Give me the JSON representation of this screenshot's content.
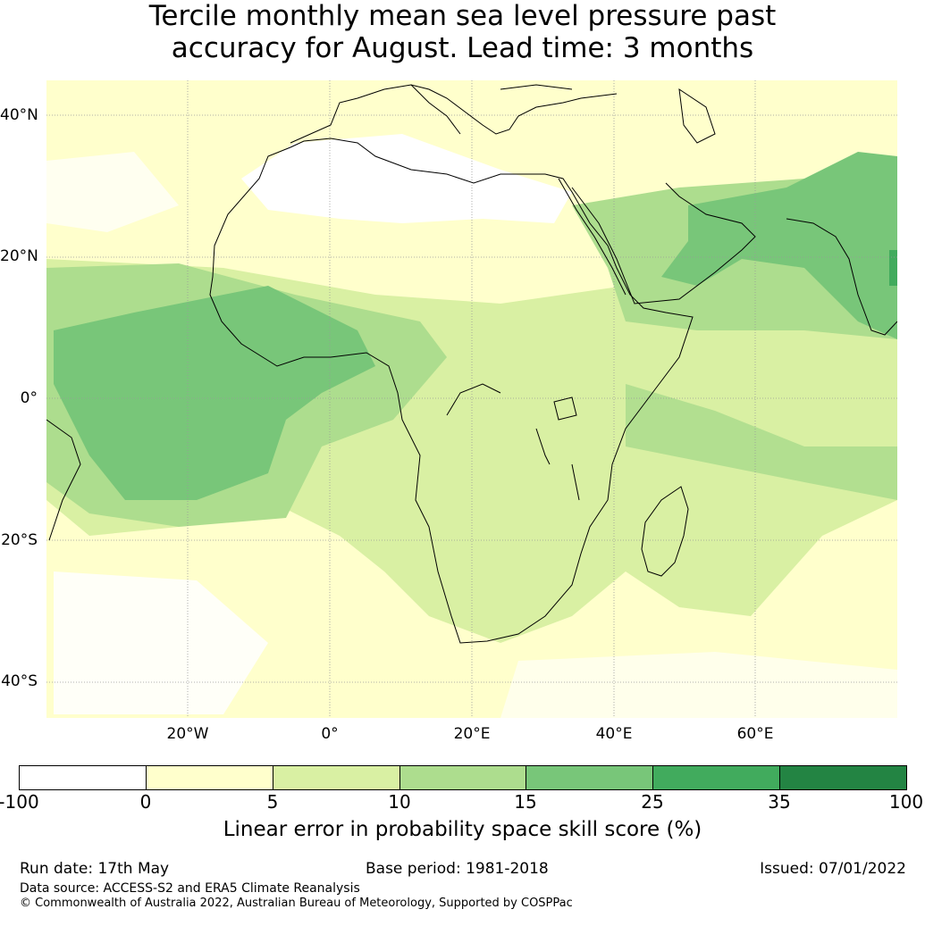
{
  "title": {
    "line1": "Tercile monthly mean sea level pressure past",
    "line2": "accuracy for August. Lead time: 3 months"
  },
  "map": {
    "lat_labels": [
      "40°N",
      "20°N",
      "0°",
      "20°S",
      "40°S"
    ],
    "lon_labels": [
      "20°W",
      "0°",
      "20°E",
      "40°E",
      "60°E"
    ]
  },
  "colorbar": {
    "ticks": [
      "-100",
      "0",
      "5",
      "10",
      "15",
      "25",
      "35",
      "100"
    ],
    "colors": [
      "#ffffff",
      "#ffffcc",
      "#d9f0a3",
      "#addd8e",
      "#78c679",
      "#41ab5d",
      "#238443"
    ],
    "label": "Linear error in probability space skill score (%)"
  },
  "footer": {
    "run_date": "Run date: 17th May",
    "base_period": "Base period: 1981-2018",
    "issued": "Issued: 07/01/2022",
    "data_source": "Data source: ACCESS-S2 and ERA5 Climate Reanalysis",
    "copyright": "© Commonwealth of Australia 2022, Australian Bureau of Meteorology, Supported by COSPPac"
  }
}
